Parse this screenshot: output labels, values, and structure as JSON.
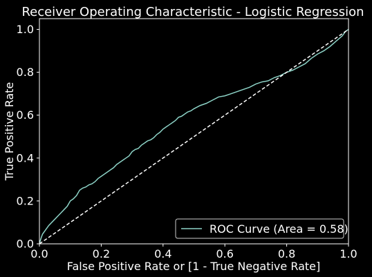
{
  "chart_data": {
    "type": "line",
    "title": "Receiver Operating Characteristic -  Logistic Regression",
    "xlabel": "False Positive Rate or [1 - True Negative Rate]",
    "ylabel": "True Positive Rate",
    "xlim": [
      0.0,
      1.0
    ],
    "ylim": [
      0.0,
      1.05
    ],
    "x_ticks": [
      "0.0",
      "0.2",
      "0.4",
      "0.6",
      "0.8",
      "1.0"
    ],
    "y_ticks": [
      "0.0",
      "0.2",
      "0.4",
      "0.6",
      "0.8",
      "1.0"
    ],
    "grid": false,
    "legend_position": "lower-right",
    "background": "#000000",
    "foreground": "#ffffff",
    "series": [
      {
        "name": "ROC Curve (Area = 0.58)",
        "color": "#8dd3c7",
        "style": "solid",
        "x": [
          0.0,
          0.005,
          0.01,
          0.02,
          0.03,
          0.04,
          0.05,
          0.06,
          0.07,
          0.08,
          0.09,
          0.1,
          0.11,
          0.12,
          0.13,
          0.14,
          0.15,
          0.16,
          0.17,
          0.18,
          0.19,
          0.2,
          0.21,
          0.22,
          0.23,
          0.24,
          0.25,
          0.26,
          0.27,
          0.28,
          0.29,
          0.3,
          0.31,
          0.32,
          0.33,
          0.34,
          0.35,
          0.36,
          0.37,
          0.38,
          0.39,
          0.4,
          0.41,
          0.42,
          0.43,
          0.44,
          0.45,
          0.46,
          0.47,
          0.48,
          0.49,
          0.5,
          0.52,
          0.54,
          0.56,
          0.58,
          0.6,
          0.62,
          0.64,
          0.66,
          0.68,
          0.7,
          0.72,
          0.74,
          0.76,
          0.78,
          0.8,
          0.82,
          0.84,
          0.86,
          0.88,
          0.9,
          0.92,
          0.94,
          0.96,
          0.98,
          0.99,
          1.0
        ],
        "y": [
          0.0,
          0.025,
          0.045,
          0.065,
          0.085,
          0.1,
          0.115,
          0.13,
          0.145,
          0.16,
          0.175,
          0.2,
          0.21,
          0.225,
          0.25,
          0.26,
          0.265,
          0.275,
          0.28,
          0.29,
          0.305,
          0.315,
          0.325,
          0.335,
          0.345,
          0.355,
          0.37,
          0.38,
          0.39,
          0.4,
          0.41,
          0.43,
          0.44,
          0.445,
          0.46,
          0.47,
          0.48,
          0.485,
          0.495,
          0.51,
          0.52,
          0.535,
          0.545,
          0.555,
          0.565,
          0.575,
          0.59,
          0.595,
          0.605,
          0.615,
          0.62,
          0.63,
          0.645,
          0.655,
          0.67,
          0.685,
          0.69,
          0.7,
          0.71,
          0.72,
          0.73,
          0.745,
          0.755,
          0.76,
          0.775,
          0.785,
          0.8,
          0.81,
          0.825,
          0.84,
          0.865,
          0.885,
          0.9,
          0.92,
          0.945,
          0.97,
          0.99,
          1.0
        ]
      },
      {
        "name": "",
        "color": "#ffffff",
        "style": "dashed",
        "x": [
          0.0,
          1.0
        ],
        "y": [
          0.0,
          1.0
        ]
      }
    ]
  }
}
